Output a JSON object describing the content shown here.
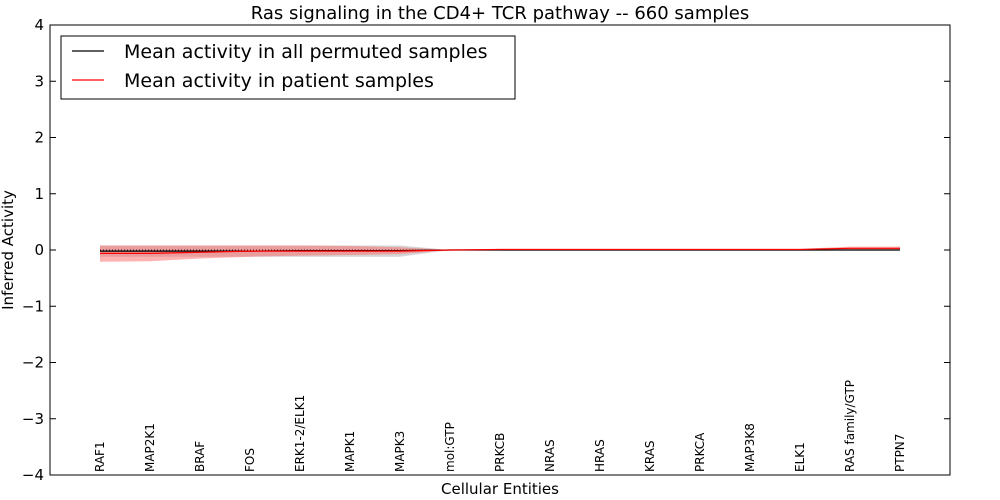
{
  "chart_data": {
    "type": "line",
    "title": "Ras signaling in the CD4+ TCR pathway -- 660 samples",
    "xlabel": "Cellular Entities",
    "ylabel": "Inferred Activity",
    "ylim": [
      -4,
      4
    ],
    "yticks": [
      "4",
      "3",
      "2",
      "1",
      "0",
      "−1",
      "−2",
      "−3",
      "−4"
    ],
    "categories": [
      "RAF1",
      "MAP2K1",
      "BRAF",
      "FOS",
      "ERK1-2/ELK1",
      "MAPK1",
      "MAPK3",
      "mol:GTP",
      "PRKCB",
      "NRAS",
      "HRAS",
      "KRAS",
      "PRKCA",
      "MAP3K8",
      "ELK1",
      "RAS family/GTP",
      "PTPN7"
    ],
    "legend": {
      "placement": "top-left"
    },
    "series": [
      {
        "name": "Mean activity in all permuted samples",
        "color": "#000000",
        "values": [
          -0.02,
          -0.02,
          -0.02,
          -0.02,
          -0.01,
          -0.01,
          -0.01,
          0.0,
          0.0,
          0.0,
          0.0,
          0.0,
          0.0,
          0.0,
          0.0,
          0.0,
          0.0
        ],
        "band_low": [
          -0.12,
          -0.12,
          -0.12,
          -0.12,
          -0.12,
          -0.12,
          -0.12,
          0.0,
          0.0,
          0.0,
          0.0,
          0.0,
          0.0,
          0.0,
          0.0,
          0.0,
          0.0
        ],
        "band_high": [
          0.08,
          0.08,
          0.08,
          0.08,
          0.08,
          0.08,
          0.08,
          0.0,
          0.0,
          0.0,
          0.0,
          0.0,
          0.0,
          0.0,
          0.0,
          0.0,
          0.0
        ],
        "band_color": "#b0b0b0"
      },
      {
        "name": "Mean activity in patient samples",
        "color": "#ff0000",
        "values": [
          -0.06,
          -0.06,
          -0.04,
          -0.02,
          -0.02,
          -0.02,
          -0.02,
          0.0,
          0.01,
          0.01,
          0.01,
          0.01,
          0.01,
          0.01,
          0.01,
          0.03,
          0.03
        ],
        "band_low": [
          -0.21,
          -0.2,
          -0.15,
          -0.12,
          -0.1,
          -0.09,
          -0.07,
          0.0,
          0.0,
          0.0,
          0.0,
          0.0,
          0.0,
          0.0,
          0.0,
          0.0,
          0.0
        ],
        "band_high": [
          0.08,
          0.08,
          0.08,
          0.08,
          0.08,
          0.07,
          0.05,
          0.0,
          0.02,
          0.02,
          0.02,
          0.02,
          0.02,
          0.02,
          0.02,
          0.06,
          0.06
        ],
        "band_color": "#ff6666"
      }
    ]
  }
}
